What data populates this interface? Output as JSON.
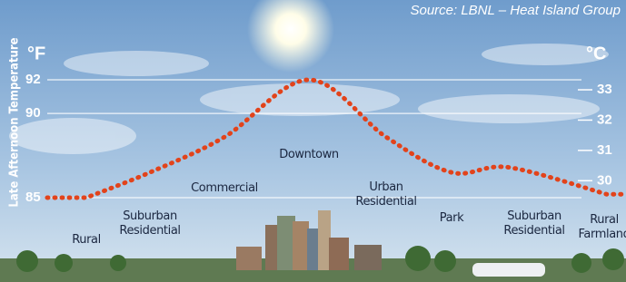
{
  "source": "Source: LBNL – Heat Island Group",
  "chart_data": {
    "type": "line",
    "ylabel": "Late Afternoon Temperature",
    "y_unit": "°F",
    "y2_unit": "°C",
    "categories": [
      "Rural",
      "Suburban Residential",
      "Commercial",
      "Downtown",
      "Urban Residential",
      "Park",
      "Suburban Residential",
      "Rural Farmland"
    ],
    "values": [
      85,
      86.5,
      88.6,
      92,
      88.6,
      86.5,
      86.8,
      85.2
    ],
    "color": "#e2431b",
    "ylim": [
      85,
      92
    ],
    "yticks": [
      85,
      90,
      92
    ],
    "y2lim": [
      29.44,
      33.33
    ],
    "y2ticks": [
      30,
      31,
      32,
      33
    ],
    "grid": true
  }
}
